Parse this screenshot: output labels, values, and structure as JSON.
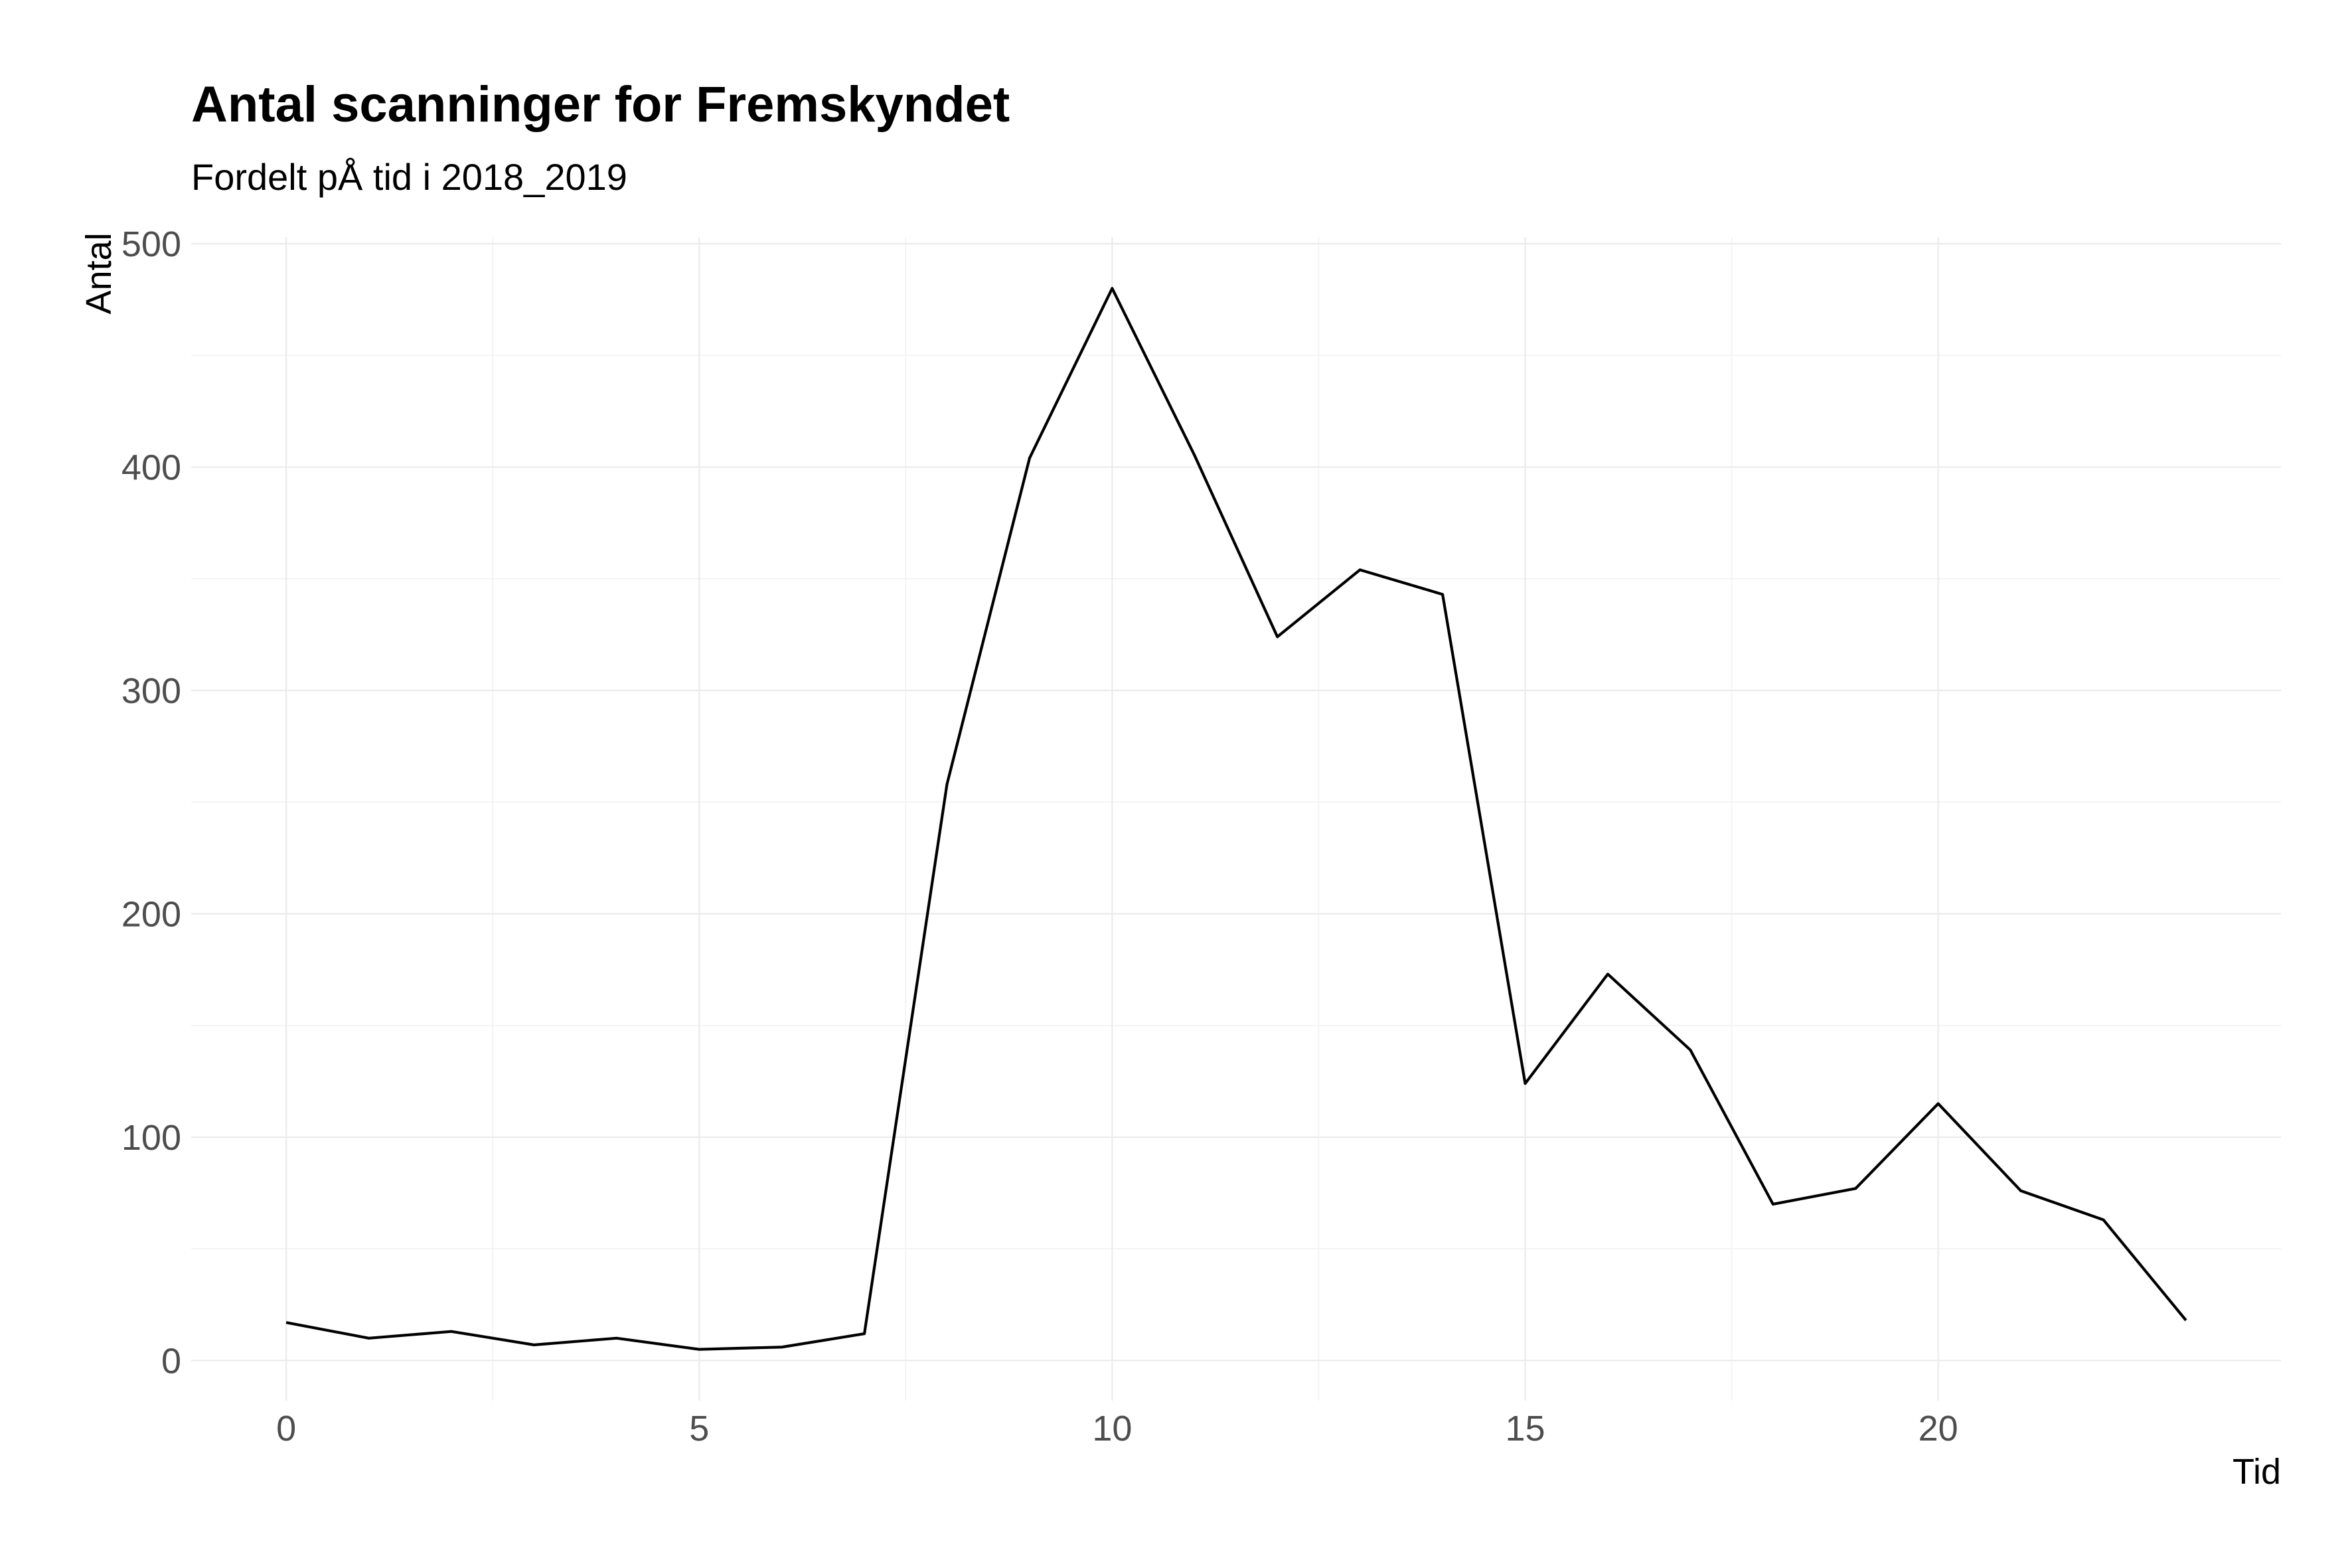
{
  "chart_data": {
    "type": "line",
    "title": "Antal scanninger for Fremskyndet",
    "subtitle": "Fordelt pÅ tid i 2018_2019",
    "xlabel": "Tid",
    "ylabel": "Antal",
    "x": [
      0,
      1,
      2,
      3,
      4,
      5,
      6,
      7,
      8,
      9,
      10,
      11,
      12,
      13,
      14,
      15,
      16,
      17,
      18,
      19,
      20,
      21,
      22,
      23
    ],
    "values": [
      17,
      10,
      13,
      7,
      10,
      5,
      6,
      12,
      258,
      404,
      480,
      405,
      324,
      354,
      343,
      124,
      173,
      139,
      70,
      77,
      115,
      76,
      63,
      18
    ],
    "xlim": [
      -1.15,
      24.15
    ],
    "ylim": [
      -18,
      503
    ],
    "x_ticks": [
      "0",
      "5",
      "10",
      "15",
      "20"
    ],
    "y_ticks": [
      "0",
      "100",
      "200",
      "300",
      "400",
      "500"
    ],
    "grid": true,
    "line_color": "#000000",
    "grid_color": "#ebebeb",
    "legend": "none"
  }
}
